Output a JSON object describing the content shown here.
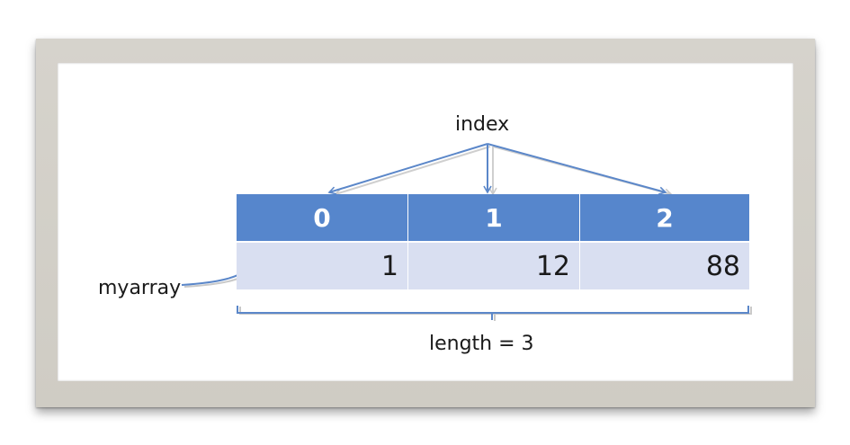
{
  "labels": {
    "index": "index",
    "array_name": "myarray",
    "length": "length = 3"
  },
  "array": {
    "indices": [
      "0",
      "1",
      "2"
    ],
    "values": [
      "1",
      "12",
      "88"
    ]
  },
  "colors": {
    "header": "#5686cc",
    "value_cell": "#d9dff1",
    "arrow": "#5b87c9",
    "frame": "#d3d0c9"
  }
}
